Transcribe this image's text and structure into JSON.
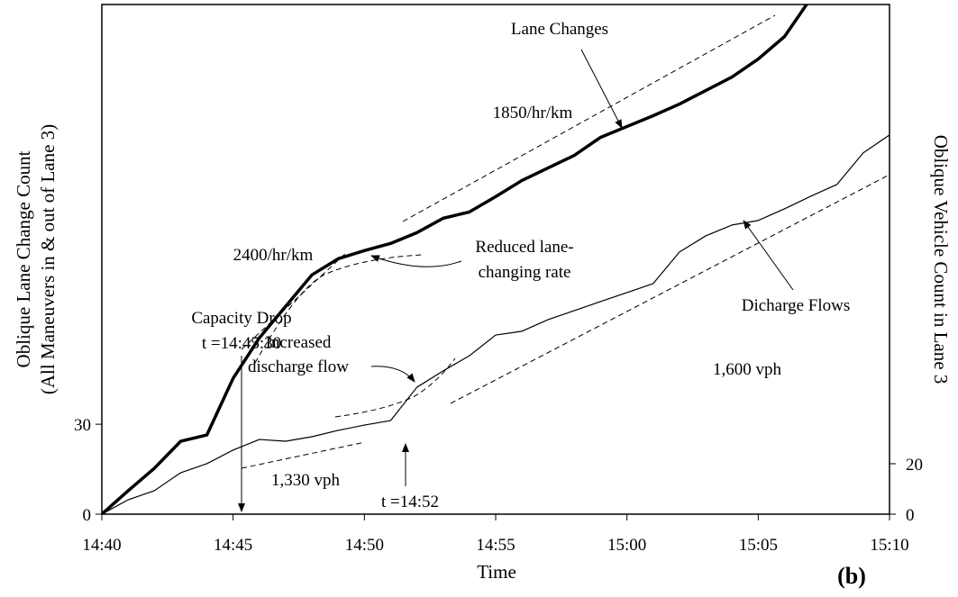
{
  "chart_data": {
    "type": "line",
    "x_label": "Time",
    "y_label": [
      "Oblique Lane Change Count",
      "(All Maneuvers in & out of Lane 3)"
    ],
    "y2_label": "Oblique Vehicle Count in Lane 3",
    "panel_label": "(b)",
    "x": [
      "14:40",
      "14:41",
      "14:42",
      "14:43",
      "14:44",
      "14:45",
      "14:46",
      "14:47",
      "14:48",
      "14:49",
      "14:50",
      "14:51",
      "14:52",
      "14:53",
      "14:54",
      "14:55",
      "14:56",
      "14:57",
      "14:58",
      "14:59",
      "15:00",
      "15:01",
      "15:02",
      "15:03",
      "15:04",
      "15:05",
      "15:06",
      "15:07",
      "15:08",
      "15:09",
      "15:10"
    ],
    "series": [
      {
        "name": "Lane Changes",
        "color": "#000000",
        "axis": "y",
        "values": [
          0,
          7.8,
          15.3,
          24.3,
          26.4,
          45.3,
          58.8,
          69.3,
          79.8,
          85.2,
          87.9,
          90.3,
          93.9,
          98.7,
          100.8,
          105.9,
          111.3,
          115.5,
          119.7,
          125.7,
          129.3,
          132.9,
          136.8,
          141.3,
          145.8,
          151.8,
          159.3,
          172,
          null,
          null,
          null
        ]
      },
      {
        "name": "Oblique Vehicle Count",
        "color": "#000000",
        "axis": "y2",
        "values": [
          0,
          5.7,
          9.3,
          16.4,
          20,
          25.4,
          29.6,
          28.9,
          30.7,
          33.2,
          35.3,
          37.1,
          50.3,
          56.8,
          62.8,
          71,
          72.5,
          77.1,
          80.7,
          84.3,
          87.8,
          91.4,
          103.9,
          110.3,
          114.6,
          116.4,
          121,
          126,
          130.7,
          143.2,
          150.3
        ]
      }
    ],
    "xlim": [
      "14:40",
      "15:10"
    ],
    "xticks": [
      "14:40",
      "14:45",
      "14:50",
      "14:55",
      "15:00",
      "15:05",
      "15:10"
    ],
    "ylim": [
      0,
      170
    ],
    "yticks": [
      0,
      30
    ],
    "y2lim": [
      0,
      202
    ],
    "y2ticks": [
      0,
      20
    ],
    "annotations": [
      "Lane Changes",
      "1850/hr/km",
      "2400/hr/km",
      "Reduced lane-",
      "changing rate",
      "Capacity Drop",
      "t =14:45:30",
      "Increased",
      "discharge flow",
      "1,330 vph",
      "t =14:52",
      "1,600 vph",
      "Dicharge Flows"
    ]
  }
}
